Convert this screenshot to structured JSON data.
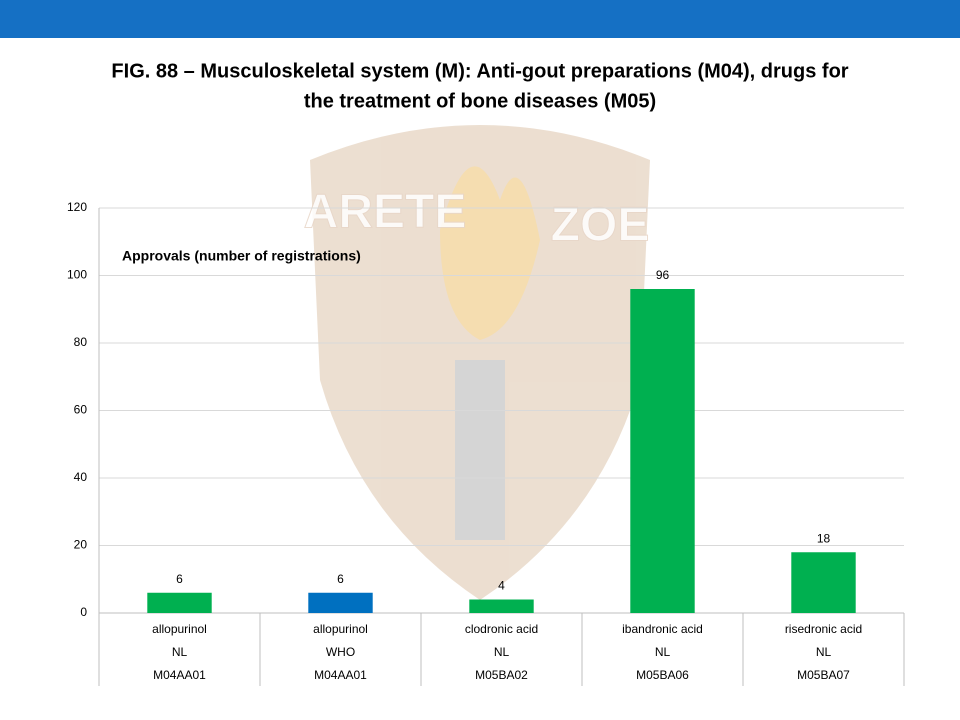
{
  "chart_data": {
    "type": "bar",
    "title": [
      "FIG. 88 – Musculoskeletal system (M): Anti-gout preparations (M04), drugs for",
      "the treatment of bone diseases (M05)"
    ],
    "annotation": "Approvals (number of registrations)",
    "watermark": [
      "ARETE",
      "ZOE"
    ],
    "categories": [
      [
        "allopurinol",
        "NL",
        "M04AA01"
      ],
      [
        "allopurinol",
        "WHO",
        "M04AA01"
      ],
      [
        "clodronic acid",
        "NL",
        "M05BA02"
      ],
      [
        "ibandronic acid",
        "NL",
        "M05BA06"
      ],
      [
        "risedronic acid",
        "NL",
        "M05BA07"
      ]
    ],
    "values": [
      6,
      6,
      4,
      96,
      18
    ],
    "colors": [
      "#00b050",
      "#0070c0",
      "#00b050",
      "#00b050",
      "#00b050"
    ],
    "ylim": [
      0,
      120
    ],
    "yticks": [
      0,
      20,
      40,
      60,
      80,
      100,
      120
    ],
    "grid": true
  }
}
